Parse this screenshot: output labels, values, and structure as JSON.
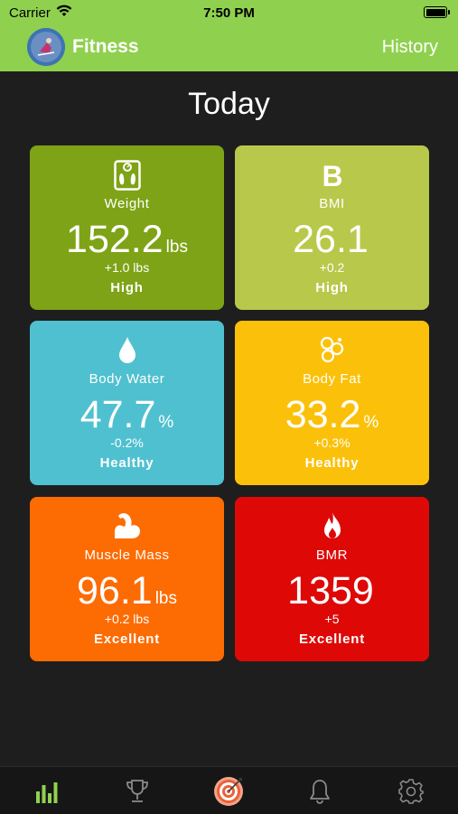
{
  "status_bar": {
    "carrier": "Carrier",
    "time": "7:50 PM"
  },
  "nav": {
    "title": "Fitness",
    "history_label": "History"
  },
  "page": {
    "title": "Today"
  },
  "colors": {
    "nav_bg": "#8fd14f",
    "weight": "#7ea316",
    "bmi": "#b8c84a",
    "body_water": "#4fc0cf",
    "body_fat": "#fbc10a",
    "muscle_mass": "#fd6b03",
    "bmr": "#de0907",
    "tab_active": "#8fd14f",
    "tab_inactive": "#8a8a8a"
  },
  "metrics": [
    {
      "icon": "scale-icon",
      "label": "Weight",
      "value": "152.2",
      "unit": "lbs",
      "change": "+1.0 lbs",
      "status": "High"
    },
    {
      "icon": "bmi-letter-icon",
      "label": "BMI",
      "value": "26.1",
      "unit": "",
      "change": "+0.2",
      "status": "High"
    },
    {
      "icon": "water-drop-icon",
      "label": "Body Water",
      "value": "47.7",
      "unit": "%",
      "change": "-0.2%",
      "status": "Healthy"
    },
    {
      "icon": "fat-cells-icon",
      "label": "Body Fat",
      "value": "33.2",
      "unit": "%",
      "change": "+0.3%",
      "status": "Healthy"
    },
    {
      "icon": "muscle-arm-icon",
      "label": "Muscle Mass",
      "value": "96.1",
      "unit": "lbs",
      "change": "+0.2 lbs",
      "status": "Excellent"
    },
    {
      "icon": "flame-icon",
      "label": "BMR",
      "value": "1359",
      "unit": "",
      "change": "+5",
      "status": "Excellent"
    }
  ],
  "tabs": [
    {
      "icon": "bar-chart-icon",
      "active": true
    },
    {
      "icon": "trophy-icon",
      "active": false
    },
    {
      "icon": "target-icon",
      "active": false
    },
    {
      "icon": "bell-icon",
      "active": false
    },
    {
      "icon": "gear-icon",
      "active": false
    }
  ]
}
